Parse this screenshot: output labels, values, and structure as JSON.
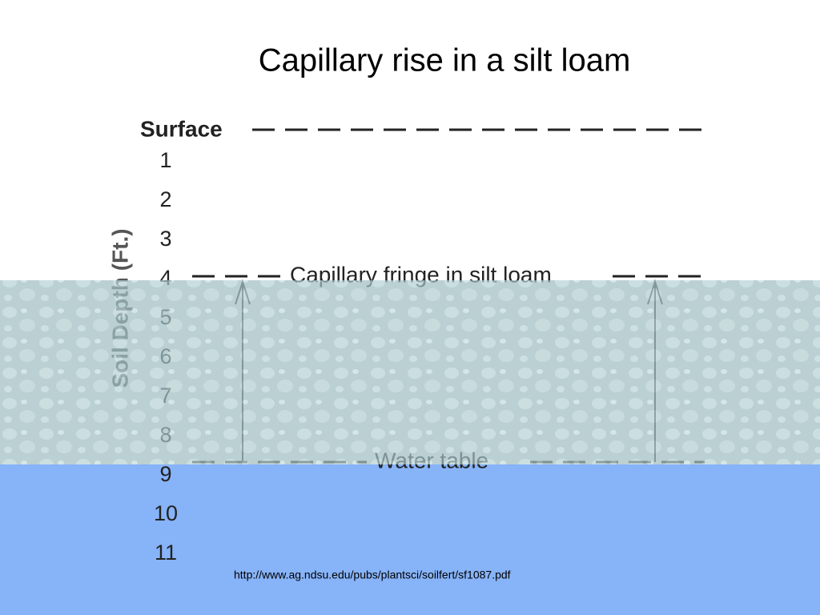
{
  "title": "Capillary rise in a silt loam",
  "diagram": {
    "surface_label": "Surface",
    "axis_label": "Soil Depth (Ft.)",
    "depth_labels": [
      "1",
      "2",
      "3",
      "4",
      "5",
      "6",
      "7",
      "8",
      "9",
      "10",
      "11"
    ],
    "fringe_label": "Capillary fringe in silt loam",
    "water_table_label": "Water table"
  },
  "source": "http://www.ag.ndsu.edu/pubs/plantsci/soilfert/sf1087.pdf"
}
